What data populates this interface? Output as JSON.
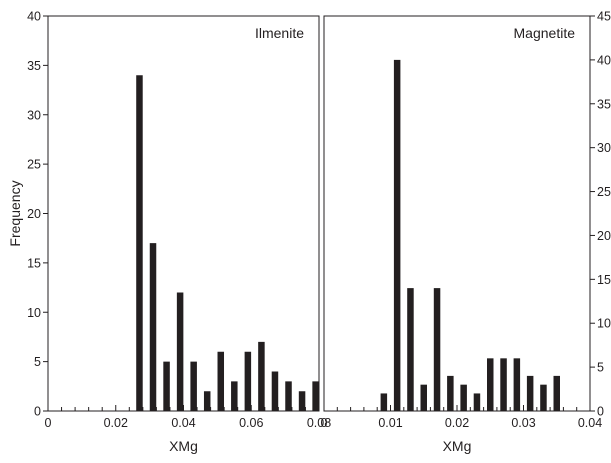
{
  "colors": {
    "bar": "#231f20",
    "axis": "#231f20",
    "background": "#ffffff"
  },
  "chart_data": [
    {
      "type": "bar",
      "title": "Ilmenite",
      "xlabel": "XMg",
      "ylabel": "Frequency",
      "xlim": [
        0,
        0.08
      ],
      "ylim": [
        0,
        40
      ],
      "x_ticks": [
        0,
        0.02,
        0.04,
        0.06,
        0.08
      ],
      "x_tick_labels": [
        "0",
        "0.02",
        "0.04",
        "0.06",
        "0.08"
      ],
      "y_ticks": [
        0,
        5,
        10,
        15,
        20,
        25,
        30,
        35,
        40
      ],
      "y_tick_labels": [
        "0",
        "5",
        "10",
        "15",
        "20",
        "25",
        "30",
        "35",
        "40"
      ],
      "y_axis_side": "left",
      "x": [
        0.027,
        0.031,
        0.035,
        0.039,
        0.043,
        0.047,
        0.051,
        0.055,
        0.059,
        0.063,
        0.067,
        0.071,
        0.075,
        0.079
      ],
      "values": [
        34,
        17,
        5,
        12,
        5,
        2,
        6,
        3,
        6,
        7,
        4,
        3,
        2,
        3
      ],
      "grid": false
    },
    {
      "type": "bar",
      "title": "Magnetite",
      "xlabel": "XMg",
      "ylabel": "",
      "xlim": [
        0,
        0.04
      ],
      "ylim": [
        0,
        45
      ],
      "x_ticks": [
        0,
        0.01,
        0.02,
        0.03,
        0.04
      ],
      "x_tick_labels": [
        "0",
        "0.01",
        "0.02",
        "0.03",
        "0.04"
      ],
      "y_ticks": [
        0,
        5,
        10,
        15,
        20,
        25,
        30,
        35,
        40,
        45
      ],
      "y_tick_labels": [
        "0",
        "5",
        "10",
        "15",
        "20",
        "25",
        "30",
        "35",
        "40",
        "45"
      ],
      "y_axis_side": "right",
      "x": [
        0.009,
        0.011,
        0.013,
        0.015,
        0.017,
        0.019,
        0.021,
        0.023,
        0.025,
        0.027,
        0.029,
        0.031,
        0.033,
        0.035
      ],
      "values": [
        2,
        40,
        14,
        3,
        14,
        4,
        3,
        2,
        6,
        6,
        6,
        4,
        3,
        4
      ],
      "grid": false
    }
  ]
}
